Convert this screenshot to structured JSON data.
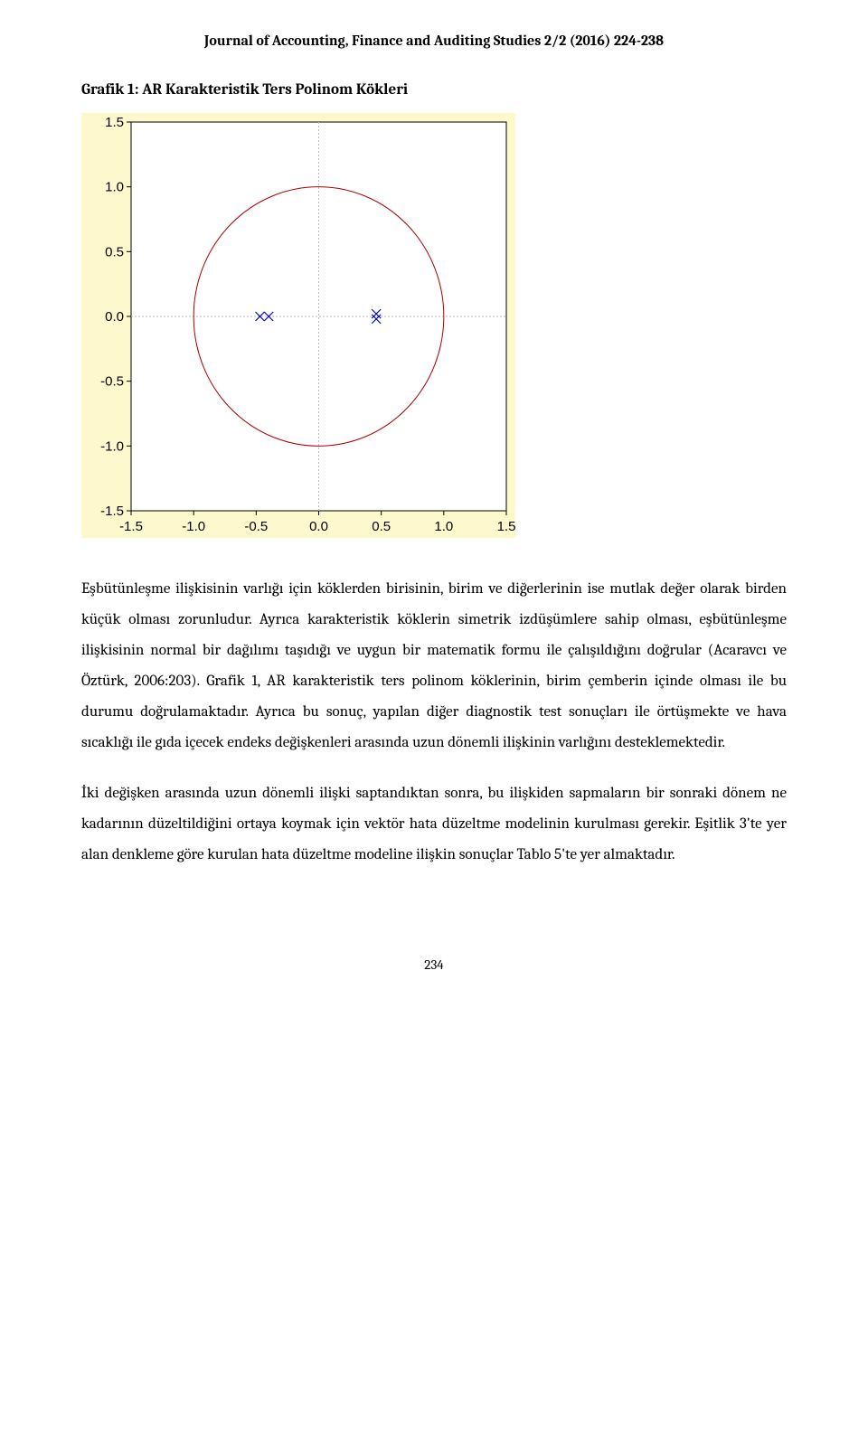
{
  "journal_header": "Journal of Accounting, Finance and Auditing Studies 2/2 (2016) 224-238",
  "graph_title": "Grafik 1: AR Karakteristik Ters Polinom Kökleri",
  "chart": {
    "type": "scatter",
    "xlim": [
      -1.5,
      1.5
    ],
    "ylim": [
      -1.5,
      1.5
    ],
    "xticks": [
      -1.5,
      -1.0,
      -0.5,
      0.0,
      0.5,
      1.0,
      1.5
    ],
    "yticks": [
      -1.5,
      -1.0,
      -0.5,
      0.0,
      0.5,
      1.0,
      1.5
    ],
    "xtick_labels": [
      "-1.5",
      "-1.0",
      "-0.5",
      "0.0",
      "0.5",
      "1.0",
      "1.5"
    ],
    "ytick_labels": [
      "-1.5",
      "-1.0",
      "-0.5",
      "0.0",
      "0.5",
      "1.0",
      "1.5"
    ],
    "circle_radius": 1.0,
    "circle_color": "#aa0000",
    "circle_linewidth": 1,
    "points": [
      {
        "x": -0.47,
        "y": 0.0
      },
      {
        "x": -0.4,
        "y": 0.0
      },
      {
        "x": 0.46,
        "y": 0.02
      },
      {
        "x": 0.46,
        "y": -0.02
      }
    ],
    "marker_style": "x",
    "marker_color": "#0000cc",
    "marker_size": 5,
    "background_color": "#fdf9cc",
    "plot_background_color": "#ffffff",
    "grid_color": "#bbbbbb",
    "grid_dash": "2,2",
    "tick_fontsize": 15,
    "tick_color": "#000000",
    "axis_line_color": "#000000"
  },
  "paragraph1": "Eşbütünleşme ilişkisinin varlığı için köklerden birisinin, birim ve diğerlerinin ise mutlak değer olarak birden küçük olması zorunludur. Ayrıca karakteristik köklerin simetrik izdüşümlere sahip olması, eşbütünleşme ilişkisinin normal bir dağılımı taşıdığı ve uygun bir matematik formu ile çalışıldığını doğrular (Acaravcı ve Öztürk, 2006:203). Grafik 1, AR karakteristik ters polinom köklerinin, birim çemberin içinde olması ile bu durumu doğrulamaktadır. Ayrıca bu sonuç, yapılan diğer diagnostik test sonuçları ile örtüşmekte ve hava sıcaklığı ile gıda içecek endeks değişkenleri arasında uzun dönemli ilişkinin varlığını desteklemektedir.",
  "paragraph2": "İki değişken arasında uzun dönemli ilişki saptandıktan sonra, bu ilişkiden sapmaların bir sonraki dönem ne kadarının düzeltildiğini ortaya koymak için vektör hata düzeltme modelinin kurulması gerekir. Eşitlik 3'te yer alan denkleme göre kurulan hata düzeltme modeline ilişkin sonuçlar Tablo 5'te yer almaktadır.",
  "page_number": "234"
}
